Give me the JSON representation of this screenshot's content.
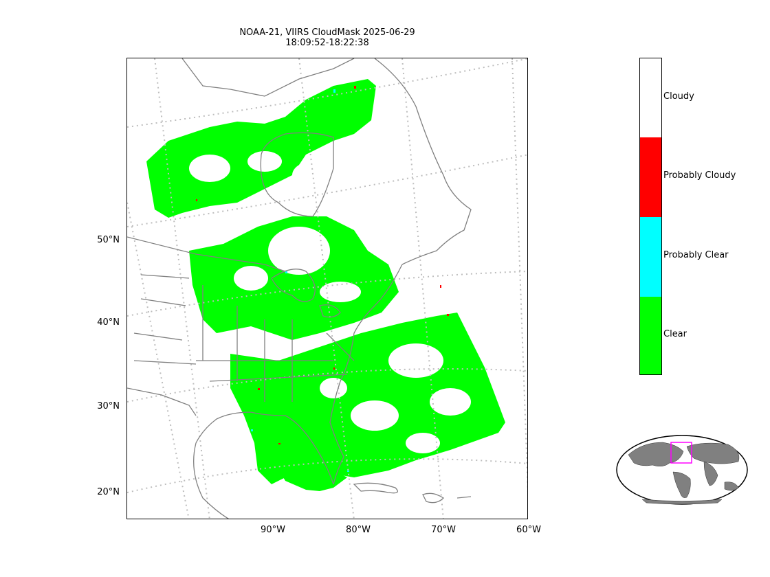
{
  "title": {
    "line1": "NOAA-21, VIIRS CloudMask 2025-06-29",
    "line2": "18:09:52-18:22:38"
  },
  "lat_labels": [
    "50°N",
    "40°N",
    "30°N",
    "20°N"
  ],
  "lon_labels": [
    "90°W",
    "80°W",
    "70°W",
    "60°W"
  ],
  "legend": {
    "categories": [
      {
        "label": "Cloudy",
        "color": "#ffffff"
      },
      {
        "label": "Probably Cloudy",
        "color": "#ff0000"
      },
      {
        "label": "Probably Clear",
        "color": "#00ffff"
      },
      {
        "label": "Clear",
        "color": "#00ff00"
      }
    ]
  },
  "colors": {
    "coastline": "#808080",
    "graticule": "#bdbdbd",
    "land_overview": "#808080",
    "overview_box": "#ff00ff"
  },
  "overview": {
    "icon": "world-overview-map",
    "domain_box": "eastern-north-america"
  }
}
